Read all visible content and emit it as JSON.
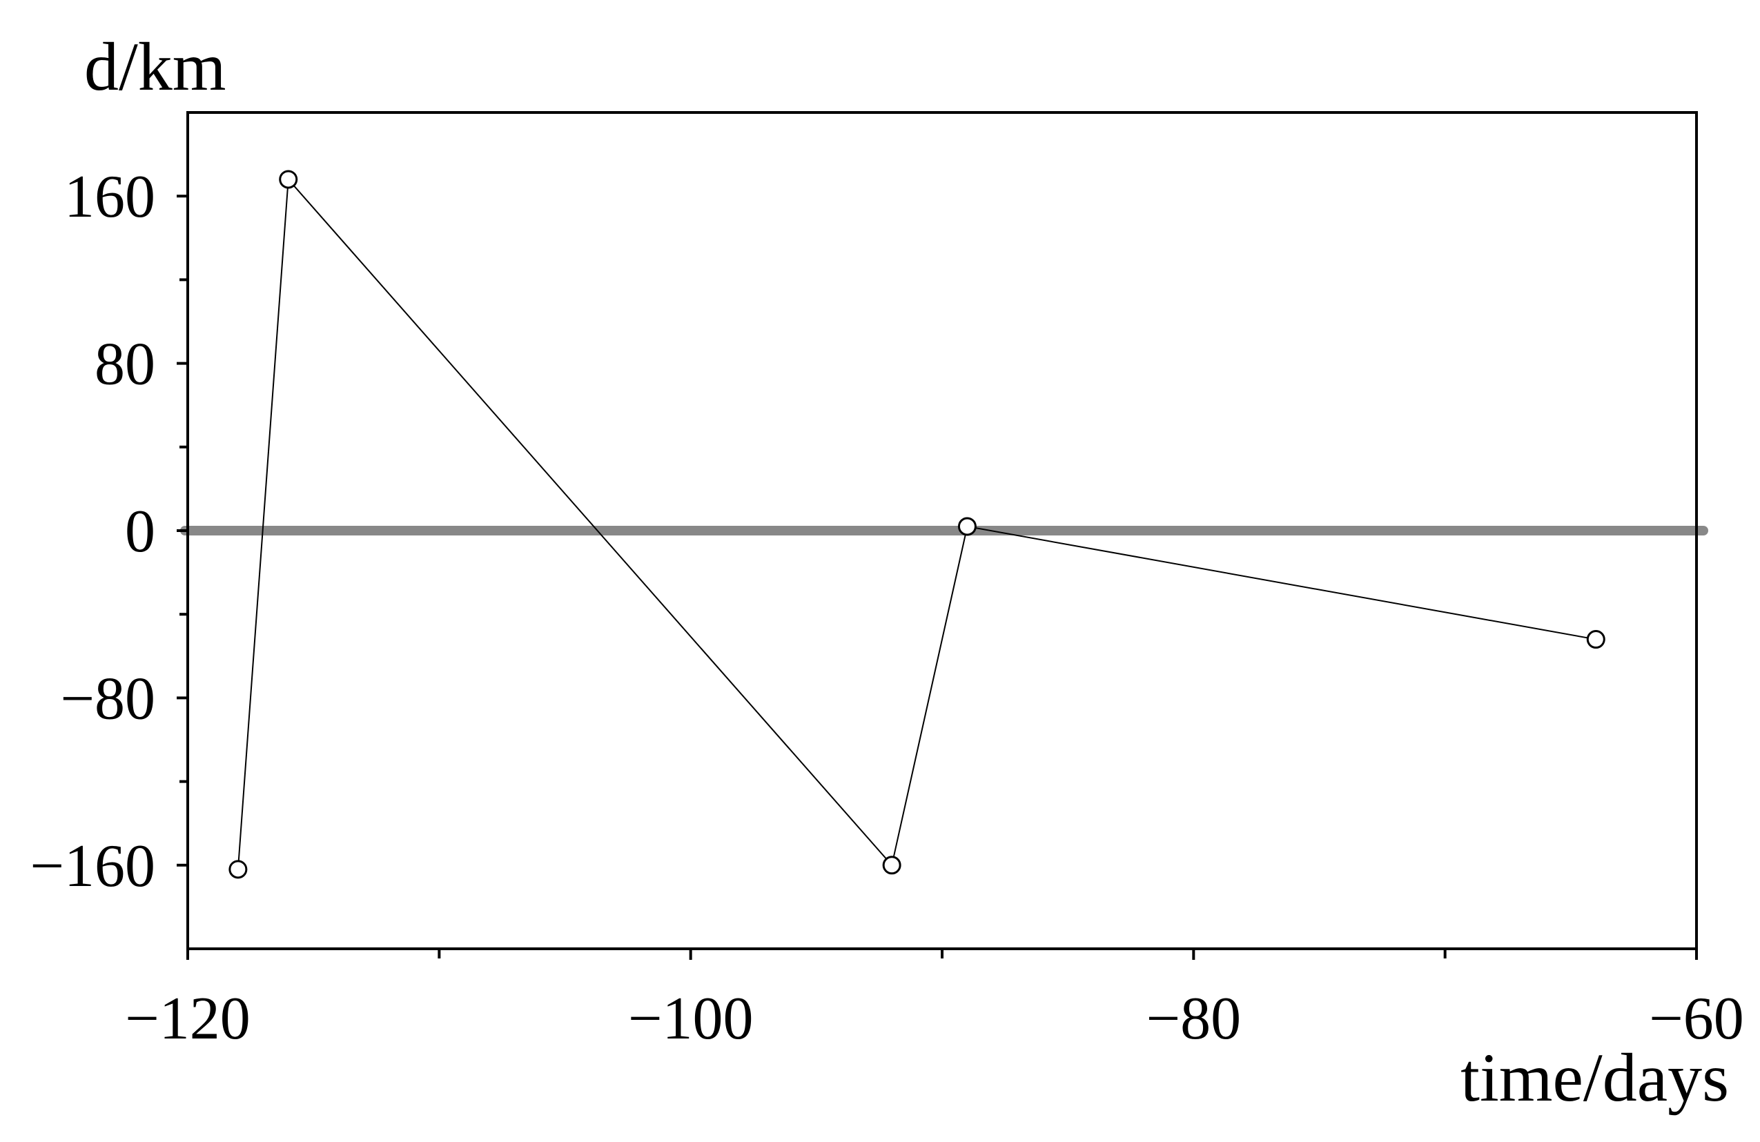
{
  "chart_data": {
    "type": "line",
    "title": "",
    "xlabel": "time/days",
    "ylabel": "d/km",
    "xlim": [
      -120,
      -60
    ],
    "ylim": [
      -200,
      200
    ],
    "x_ticks": [
      -120,
      -100,
      -80,
      -60
    ],
    "x_minor_ticks": [
      -110,
      -90,
      -70
    ],
    "y_ticks": [
      -160,
      -80,
      0,
      80,
      160
    ],
    "y_minor_ticks": [
      -120,
      -40,
      40,
      120
    ],
    "grid": false,
    "legend": "none",
    "reference_line": {
      "y": 0,
      "color": "#888888"
    },
    "series": [
      {
        "x": [
          -118.0,
          -116.0,
          -92.0,
          -89.0,
          -64.0
        ],
        "y": [
          -162,
          168,
          -160,
          2,
          -52
        ],
        "color": "#000000",
        "marker": "open-circle"
      }
    ]
  }
}
